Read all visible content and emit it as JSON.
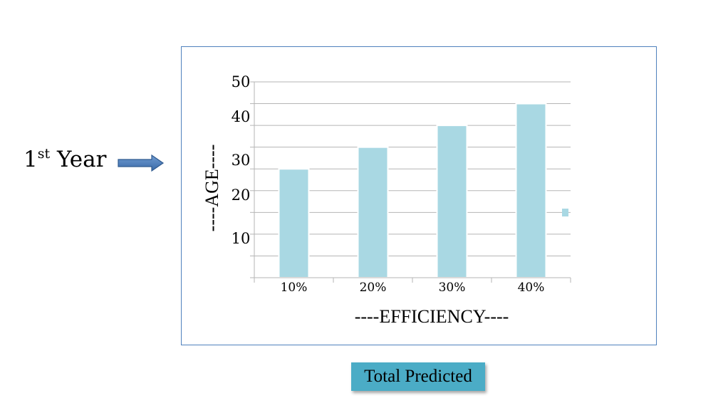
{
  "slide": {
    "side_label_main": "1",
    "side_label_sup": "st",
    "side_label_tail": " Year",
    "caption": "Total Predicted"
  },
  "colors": {
    "bar": "#a9d8e3",
    "bar_edge": "#ffffff",
    "grid": "#b5b5b5",
    "frame": "#4f81bd",
    "arrow": "#4f81bd",
    "caption_bg": "#4bacc6"
  },
  "chart_data": {
    "type": "bar",
    "categories": [
      "10%",
      "20%",
      "30%",
      "40%"
    ],
    "values": [
      25,
      30,
      35,
      40
    ],
    "xlabel": "----EFFICIENCY----",
    "ylabel": "----AGE----",
    "ylim": [
      0,
      45
    ],
    "yticks": [
      {
        "label": "50",
        "value": 45
      },
      {
        "label": "40",
        "value": 37
      },
      {
        "label": "30",
        "value": 27
      },
      {
        "label": "20",
        "value": 19
      },
      {
        "label": "10",
        "value": 9
      }
    ],
    "grid": true,
    "legend": "right"
  }
}
